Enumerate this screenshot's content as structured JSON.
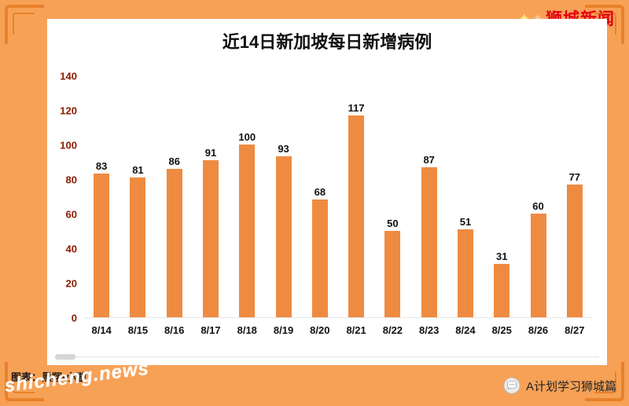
{
  "header": {
    "brand": "狮城新闻",
    "sparkle_big": "✦",
    "sparkle_small": "✧"
  },
  "chart_data": {
    "type": "bar",
    "title": "近14日新加坡每日新增病例",
    "categories": [
      "8/14",
      "8/15",
      "8/16",
      "8/17",
      "8/18",
      "8/19",
      "8/20",
      "8/21",
      "8/22",
      "8/23",
      "8/24",
      "8/25",
      "8/26",
      "8/27"
    ],
    "values": [
      83,
      81,
      86,
      91,
      100,
      93,
      68,
      117,
      50,
      87,
      51,
      31,
      60,
      77
    ],
    "xlabel": "",
    "ylabel": "",
    "ylim": [
      0,
      140
    ],
    "yticks": [
      0,
      20,
      40,
      60,
      80,
      100,
      120,
      140
    ],
    "grid": false,
    "legend": null,
    "bar_color": "#ef8b41",
    "value_labels": true
  },
  "footer": {
    "credit": "图表：黑翔•小璇",
    "watermark": "shicheng.news",
    "wechat_label": "A计划学习狮城篇",
    "wechat_icon": "chat-bubble-icon"
  },
  "colors": {
    "background": "#f7a156",
    "panel": "#ffffff",
    "bar": "#ef8b41",
    "brand_red": "#e60012",
    "ytick_text": "#8b1a00",
    "ornament": "#e8812a"
  }
}
